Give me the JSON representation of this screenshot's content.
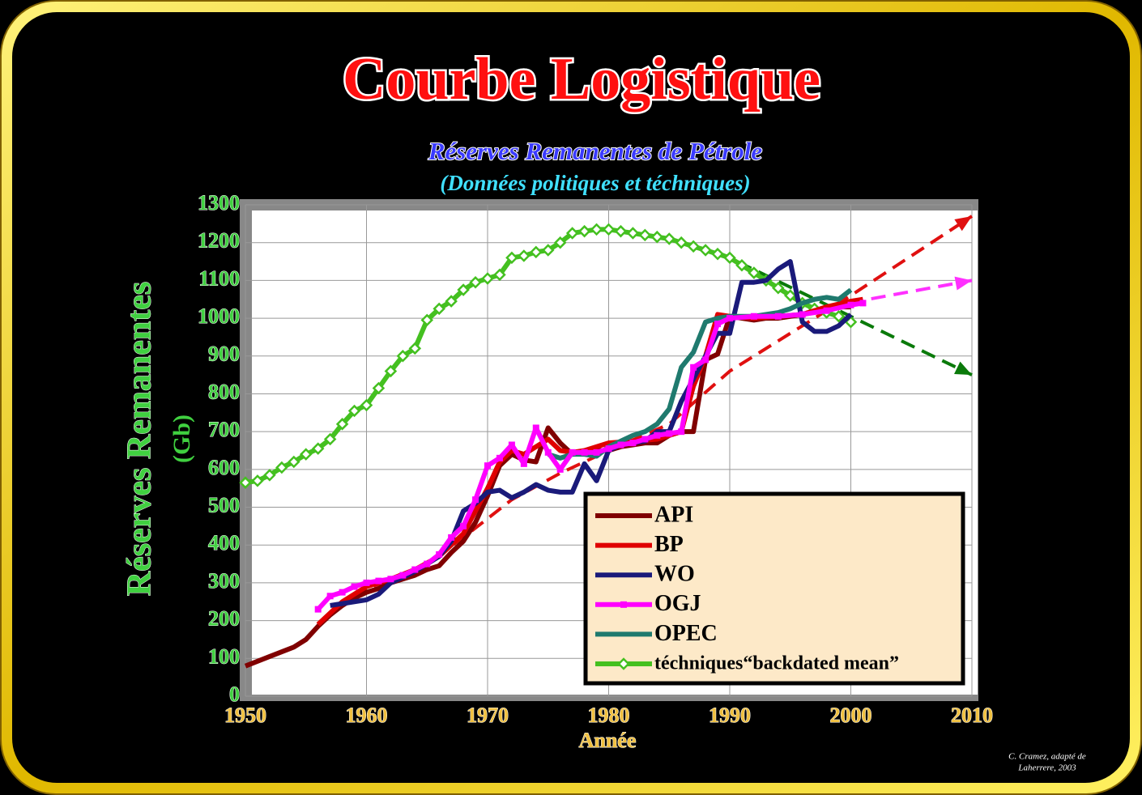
{
  "chart_data": {
    "type": "line",
    "title": "Courbe Logistique",
    "subtitle": "Réserves Remanentes de Pétrole",
    "subtitle2": "(Données politiques et téchniques)",
    "y_label": "Réserves Remanentes",
    "y_unit": "(Gb)",
    "x_label": "Année",
    "credit": [
      "C. Cramez, adapté de",
      "Laherrere, 2003"
    ],
    "xlim": [
      1950,
      2010
    ],
    "xticks": [
      1950,
      1960,
      1970,
      1980,
      1990,
      2000,
      2010
    ],
    "ylim": [
      0,
      1300
    ],
    "yticks": [
      0,
      100,
      200,
      300,
      400,
      500,
      600,
      700,
      800,
      900,
      1000,
      1100,
      1200,
      1300
    ],
    "grid": true,
    "series": [
      {
        "name": "API",
        "color": "#800000",
        "marker": "none",
        "x": [
          1950,
          1952,
          1954,
          1955,
          1956,
          1957,
          1958,
          1959,
          1960,
          1961,
          1962,
          1963,
          1964,
          1965,
          1966,
          1967,
          1968,
          1969,
          1970,
          1971,
          1972,
          1973,
          1974,
          1975,
          1976,
          1977,
          1978,
          1979,
          1980,
          1981,
          1982,
          1983,
          1984,
          1985,
          1986,
          1987,
          1988,
          1989,
          1990,
          1991,
          1992,
          1993,
          1994,
          1995,
          1996,
          1997,
          1998,
          1999,
          2000
        ],
        "values": [
          80,
          105,
          130,
          150,
          185,
          215,
          240,
          260,
          275,
          285,
          300,
          310,
          320,
          335,
          345,
          380,
          410,
          460,
          530,
          610,
          640,
          625,
          620,
          710,
          670,
          640,
          645,
          650,
          650,
          660,
          665,
          670,
          670,
          690,
          700,
          700,
          890,
          905,
          1005,
          1000,
          995,
          1000,
          1000,
          1005,
          1010,
          1020,
          1020,
          1030,
          1030
        ]
      },
      {
        "name": "BP",
        "color": "#e00000",
        "marker": "none",
        "x": [
          1956,
          1958,
          1960,
          1962,
          1964,
          1966,
          1968,
          1970,
          1971,
          1972,
          1973,
          1974,
          1975,
          1976,
          1977,
          1978,
          1980,
          1982,
          1984,
          1986,
          1987,
          1988,
          1989,
          1990,
          1992,
          1994,
          1996,
          1998,
          2000,
          2001
        ],
        "values": [
          190,
          250,
          290,
          310,
          335,
          370,
          430,
          550,
          620,
          650,
          640,
          660,
          680,
          650,
          645,
          650,
          670,
          675,
          680,
          700,
          820,
          900,
          1010,
          1005,
          1000,
          1005,
          1010,
          1030,
          1045,
          1050
        ]
      },
      {
        "name": "WO",
        "color": "#1a1a7a",
        "marker": "none",
        "x": [
          1957,
          1958,
          1960,
          1961,
          1962,
          1963,
          1964,
          1965,
          1966,
          1967,
          1968,
          1969,
          1970,
          1971,
          1972,
          1973,
          1974,
          1975,
          1976,
          1977,
          1978,
          1979,
          1980,
          1981,
          1982,
          1983,
          1984,
          1985,
          1986,
          1987,
          1988,
          1989,
          1990,
          1991,
          1992,
          1993,
          1994,
          1995,
          1996,
          1997,
          1998,
          1999,
          2000
        ],
        "values": [
          240,
          245,
          255,
          270,
          300,
          315,
          330,
          350,
          370,
          410,
          490,
          510,
          540,
          545,
          525,
          540,
          560,
          545,
          540,
          540,
          615,
          570,
          650,
          665,
          670,
          675,
          700,
          700,
          780,
          840,
          900,
          960,
          960,
          1095,
          1095,
          1100,
          1130,
          1150,
          990,
          965,
          965,
          980,
          1010
        ]
      },
      {
        "name": "OGJ",
        "color": "#ff00ff",
        "marker": "square",
        "x": [
          1956,
          1957,
          1958,
          1959,
          1960,
          1961,
          1962,
          1963,
          1964,
          1965,
          1966,
          1967,
          1968,
          1969,
          1970,
          1971,
          1972,
          1973,
          1974,
          1975,
          1976,
          1977,
          1978,
          1979,
          1980,
          1981,
          1982,
          1983,
          1984,
          1985,
          1986,
          1987,
          1988,
          1989,
          1990,
          1992,
          1994,
          1996,
          1998,
          2000,
          2001
        ],
        "values": [
          230,
          265,
          275,
          290,
          300,
          305,
          310,
          320,
          335,
          350,
          375,
          420,
          450,
          520,
          610,
          630,
          665,
          615,
          710,
          645,
          600,
          645,
          645,
          645,
          655,
          665,
          670,
          680,
          690,
          695,
          700,
          870,
          890,
          985,
          1000,
          1005,
          1005,
          1010,
          1020,
          1035,
          1040
        ]
      },
      {
        "name": "OPEC",
        "color": "#1f7a6e",
        "marker": "none",
        "x": [
          1975,
          1976,
          1977,
          1978,
          1979,
          1980,
          1982,
          1983,
          1984,
          1985,
          1986,
          1987,
          1988,
          1989,
          1990,
          1992,
          1994,
          1995,
          1996,
          1997,
          1998,
          1999,
          2000
        ],
        "values": [
          640,
          630,
          640,
          640,
          635,
          660,
          690,
          700,
          720,
          760,
          870,
          910,
          990,
          1000,
          1005,
          1005,
          1015,
          1025,
          1040,
          1050,
          1055,
          1050,
          1075
        ]
      },
      {
        "name": "téchniques“backdated mean”",
        "color": "#44c020",
        "marker": "diamond",
        "x": [
          1950,
          1951,
          1952,
          1953,
          1954,
          1955,
          1956,
          1957,
          1958,
          1959,
          1960,
          1961,
          1962,
          1963,
          1964,
          1965,
          1966,
          1967,
          1968,
          1969,
          1970,
          1971,
          1972,
          1973,
          1974,
          1975,
          1976,
          1977,
          1978,
          1979,
          1980,
          1981,
          1982,
          1983,
          1984,
          1985,
          1986,
          1987,
          1988,
          1989,
          1990,
          1991,
          1992,
          1993,
          1994,
          1995,
          1996,
          1997,
          1998,
          1999,
          2000
        ],
        "values": [
          565,
          570,
          585,
          605,
          620,
          640,
          655,
          680,
          720,
          755,
          770,
          815,
          860,
          900,
          920,
          995,
          1025,
          1045,
          1075,
          1095,
          1105,
          1115,
          1160,
          1165,
          1175,
          1180,
          1200,
          1225,
          1230,
          1235,
          1235,
          1230,
          1225,
          1220,
          1215,
          1210,
          1200,
          1190,
          1180,
          1170,
          1160,
          1140,
          1120,
          1100,
          1080,
          1060,
          1040,
          1025,
          1015,
          1005,
          990
        ]
      }
    ],
    "trends": [
      {
        "color": "#e01010",
        "x": [
          1956,
          1960,
          1964,
          1968,
          1972,
          1976,
          1980,
          1985,
          1990,
          1995,
          2000,
          2010
        ],
        "values": [
          190,
          285,
          330,
          420,
          520,
          590,
          650,
          720,
          860,
          960,
          1060,
          1270
        ]
      },
      {
        "color": "#ff30ff",
        "x": [
          1998,
          2010
        ],
        "values": [
          1030,
          1100
        ]
      },
      {
        "color": "#0a7a0a",
        "x": [
          1989,
          2010
        ],
        "values": [
          1175,
          850
        ]
      }
    ]
  }
}
